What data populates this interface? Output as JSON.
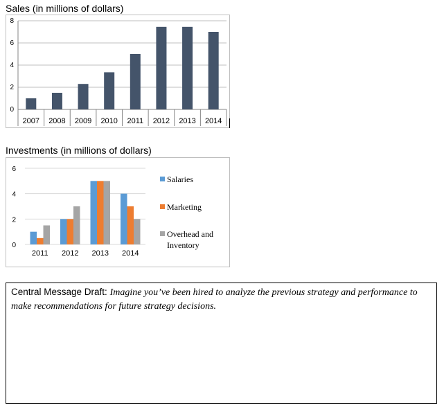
{
  "chart_data": [
    {
      "type": "bar",
      "title": "Sales (in millions of dollars)",
      "categories": [
        "2007",
        "2008",
        "2009",
        "2010",
        "2011",
        "2012",
        "2013",
        "2014"
      ],
      "values": [
        1.0,
        1.5,
        2.3,
        3.35,
        5.0,
        7.45,
        7.45,
        7.0
      ],
      "ylim": [
        0,
        8
      ],
      "yticks": [
        0,
        2,
        4,
        6,
        8
      ],
      "xlabel": "",
      "ylabel": "",
      "grid": true,
      "colors": [
        "#44546a"
      ]
    },
    {
      "type": "bar",
      "title": "Investments (in millions of dollars)",
      "categories": [
        "2011",
        "2012",
        "2013",
        "2014"
      ],
      "series": [
        {
          "name": "Salaries",
          "values": [
            1.0,
            2.0,
            5.0,
            4.0
          ]
        },
        {
          "name": "Marketing",
          "values": [
            0.5,
            2.0,
            5.0,
            3.0
          ]
        },
        {
          "name": "Overhead and Inventory",
          "values": [
            1.5,
            3.0,
            5.0,
            2.0
          ]
        }
      ],
      "ylim": [
        0,
        6
      ],
      "yticks": [
        0,
        2,
        4,
        6
      ],
      "xlabel": "",
      "ylabel": "",
      "grid": true,
      "legend": "right",
      "colors": [
        "#5b9bd5",
        "#ed7d31",
        "#a5a5a5"
      ]
    }
  ],
  "message": {
    "label": "Central Message Draft: ",
    "text": "Imagine you’ve been hired to analyze the previous strategy and performance to make recommendations for future strategy decisions."
  }
}
